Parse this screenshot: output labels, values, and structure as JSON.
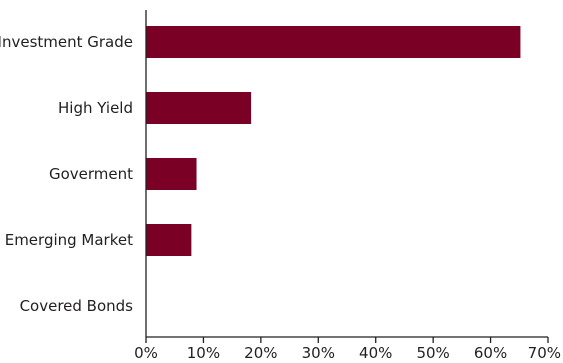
{
  "chart_data": {
    "type": "bar",
    "orientation": "horizontal",
    "categories": [
      "Investment Grade",
      "High Yield",
      "Goverment",
      "Emerging Market",
      "Covered Bonds"
    ],
    "values": [
      65.2,
      18.3,
      8.8,
      7.9,
      0
    ],
    "xlim": [
      0,
      70
    ],
    "x_ticks": [
      "0%",
      "10%",
      "20%",
      "30%",
      "40%",
      "50%",
      "60%",
      "70%"
    ],
    "bar_color": "#7a0026",
    "grid": false,
    "legend": "none"
  }
}
